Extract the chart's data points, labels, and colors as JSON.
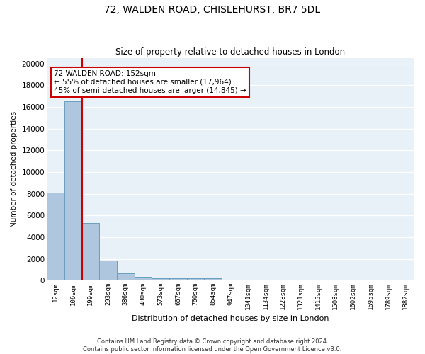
{
  "title1": "72, WALDEN ROAD, CHISLEHURST, BR7 5DL",
  "title2": "Size of property relative to detached houses in London",
  "xlabel": "Distribution of detached houses by size in London",
  "ylabel": "Number of detached properties",
  "categories": [
    "12sqm",
    "106sqm",
    "199sqm",
    "293sqm",
    "386sqm",
    "480sqm",
    "573sqm",
    "667sqm",
    "760sqm",
    "854sqm",
    "947sqm",
    "1041sqm",
    "1134sqm",
    "1228sqm",
    "1321sqm",
    "1415sqm",
    "1508sqm",
    "1602sqm",
    "1695sqm",
    "1789sqm",
    "1882sqm"
  ],
  "values": [
    8100,
    16500,
    5300,
    1850,
    700,
    320,
    240,
    230,
    210,
    185,
    0,
    0,
    0,
    0,
    0,
    0,
    0,
    0,
    0,
    0,
    0
  ],
  "bar_color": "#aec6de",
  "bar_edge_color": "#6a9fbf",
  "bg_color": "#e8f0f8",
  "grid_color": "#ffffff",
  "property_line_color": "#cc0000",
  "annotation_text": "72 WALDEN ROAD: 152sqm\n← 55% of detached houses are smaller (17,964)\n45% of semi-detached houses are larger (14,845) →",
  "annotation_box_color": "#ffffff",
  "annotation_box_edge": "#cc0000",
  "footer": "Contains HM Land Registry data © Crown copyright and database right 2024.\nContains public sector information licensed under the Open Government Licence v3.0.",
  "ylim": [
    0,
    20500
  ],
  "yticks": [
    0,
    2000,
    4000,
    6000,
    8000,
    10000,
    12000,
    14000,
    16000,
    18000,
    20000
  ]
}
